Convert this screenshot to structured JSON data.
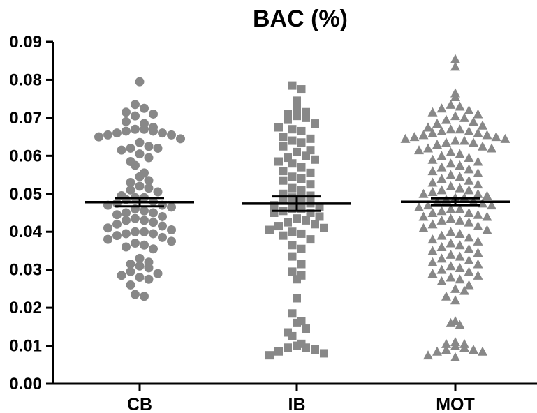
{
  "chart_data": {
    "type": "scatter",
    "title": "BAC (%)",
    "xlabel": "",
    "ylabel": "",
    "ylim": [
      0.0,
      0.09
    ],
    "yticks": [
      "0.00",
      "0.01",
      "0.02",
      "0.03",
      "0.04",
      "0.05",
      "0.06",
      "0.07",
      "0.08",
      "0.09"
    ],
    "categories": [
      "CB",
      "IB",
      "MOT"
    ],
    "marker_color": "#888888",
    "series": [
      {
        "category": "CB",
        "marker": "circle",
        "mean": 0.0478,
        "sem": 0.0011,
        "values": [
          0.0795,
          0.0735,
          0.0725,
          0.0715,
          0.071,
          0.0705,
          0.0685,
          0.069,
          0.0675,
          0.067,
          0.067,
          0.0665,
          0.0665,
          0.066,
          0.066,
          0.0655,
          0.0655,
          0.065,
          0.0645,
          0.0635,
          0.0625,
          0.062,
          0.062,
          0.0615,
          0.0605,
          0.0595,
          0.0585,
          0.0575,
          0.0555,
          0.0545,
          0.0535,
          0.053,
          0.052,
          0.0515,
          0.051,
          0.0505,
          0.0495,
          0.049,
          0.049,
          0.0485,
          0.048,
          0.0475,
          0.047,
          0.047,
          0.0465,
          0.046,
          0.0455,
          0.045,
          0.045,
          0.0445,
          0.044,
          0.0435,
          0.043,
          0.043,
          0.0425,
          0.042,
          0.0415,
          0.041,
          0.0405,
          0.04,
          0.04,
          0.0395,
          0.0395,
          0.039,
          0.0385,
          0.038,
          0.0375,
          0.037,
          0.0365,
          0.036,
          0.0355,
          0.033,
          0.032,
          0.0315,
          0.031,
          0.0305,
          0.0295,
          0.029,
          0.0285,
          0.028,
          0.0275,
          0.026,
          0.0235,
          0.023
        ]
      },
      {
        "category": "IB",
        "marker": "square",
        "mean": 0.0474,
        "sem": 0.0019,
        "values": [
          0.0785,
          0.0775,
          0.0745,
          0.0725,
          0.0715,
          0.071,
          0.0705,
          0.07,
          0.0695,
          0.0685,
          0.0675,
          0.067,
          0.0665,
          0.065,
          0.0645,
          0.064,
          0.0635,
          0.0625,
          0.0615,
          0.061,
          0.06,
          0.0595,
          0.059,
          0.0585,
          0.058,
          0.057,
          0.056,
          0.0555,
          0.0545,
          0.054,
          0.0535,
          0.0525,
          0.0515,
          0.051,
          0.05,
          0.0495,
          0.049,
          0.049,
          0.0485,
          0.0475,
          0.047,
          0.0465,
          0.046,
          0.046,
          0.0455,
          0.045,
          0.045,
          0.044,
          0.0435,
          0.043,
          0.0425,
          0.042,
          0.0415,
          0.041,
          0.0405,
          0.04,
          0.0395,
          0.039,
          0.038,
          0.0365,
          0.0355,
          0.0335,
          0.0315,
          0.0295,
          0.0285,
          0.0275,
          0.0225,
          0.0185,
          0.0165,
          0.016,
          0.0145,
          0.0135,
          0.0125,
          0.0105,
          0.01,
          0.0095,
          0.0095,
          0.009,
          0.0085,
          0.008,
          0.0075
        ]
      },
      {
        "category": "MOT",
        "marker": "triangle",
        "mean": 0.0479,
        "sem": 0.0009,
        "values": [
          0.0855,
          0.0835,
          0.0765,
          0.0755,
          0.0735,
          0.073,
          0.0725,
          0.072,
          0.0715,
          0.071,
          0.0705,
          0.07,
          0.0695,
          0.069,
          0.0685,
          0.068,
          0.0675,
          0.067,
          0.067,
          0.0665,
          0.0665,
          0.066,
          0.066,
          0.0655,
          0.0655,
          0.065,
          0.065,
          0.0645,
          0.0645,
          0.064,
          0.064,
          0.0635,
          0.0635,
          0.063,
          0.0625,
          0.062,
          0.062,
          0.0615,
          0.061,
          0.0605,
          0.06,
          0.0595,
          0.059,
          0.0585,
          0.058,
          0.0575,
          0.057,
          0.0565,
          0.056,
          0.0555,
          0.055,
          0.0545,
          0.054,
          0.0535,
          0.053,
          0.0525,
          0.052,
          0.0515,
          0.051,
          0.051,
          0.0505,
          0.05,
          0.05,
          0.0495,
          0.049,
          0.049,
          0.0485,
          0.048,
          0.048,
          0.0475,
          0.047,
          0.047,
          0.0465,
          0.046,
          0.046,
          0.0455,
          0.045,
          0.045,
          0.0445,
          0.044,
          0.044,
          0.0435,
          0.043,
          0.043,
          0.0425,
          0.042,
          0.0415,
          0.041,
          0.0405,
          0.04,
          0.0395,
          0.039,
          0.0385,
          0.038,
          0.0375,
          0.037,
          0.0365,
          0.036,
          0.0355,
          0.035,
          0.0345,
          0.034,
          0.0335,
          0.033,
          0.0325,
          0.032,
          0.0315,
          0.031,
          0.0305,
          0.03,
          0.0295,
          0.029,
          0.0285,
          0.028,
          0.0275,
          0.027,
          0.026,
          0.025,
          0.0245,
          0.023,
          0.022,
          0.0165,
          0.016,
          0.0155,
          0.011,
          0.0105,
          0.0105,
          0.01,
          0.0095,
          0.009,
          0.009,
          0.0085,
          0.0085,
          0.0075,
          0.007
        ]
      }
    ]
  }
}
